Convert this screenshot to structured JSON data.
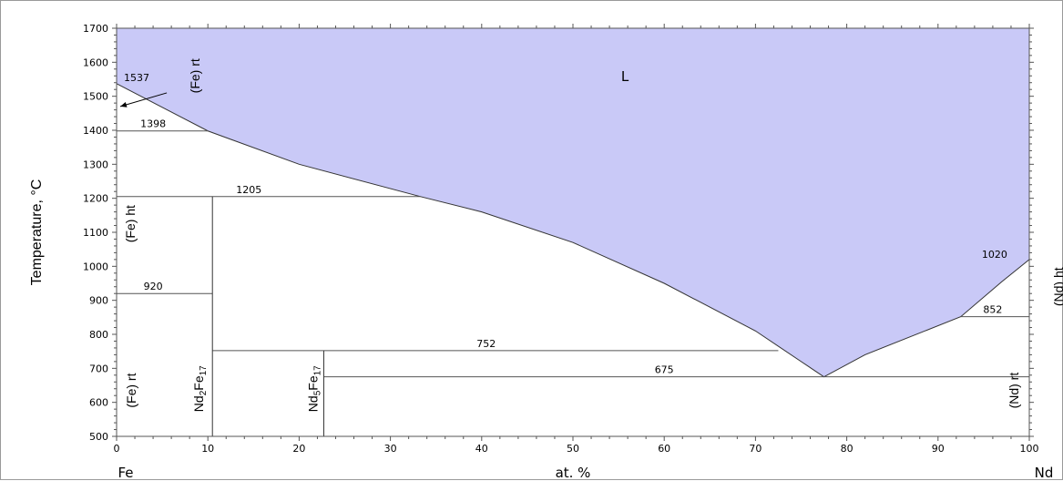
{
  "chart_data": {
    "type": "line",
    "title": "",
    "xlabel": "at. %",
    "ylabel": "Temperature, °C",
    "xlim": [
      0,
      100
    ],
    "ylim": [
      500,
      1700
    ],
    "x_ticks": [
      0,
      10,
      20,
      30,
      40,
      50,
      60,
      70,
      80,
      90,
      100
    ],
    "y_ticks": [
      500,
      600,
      700,
      800,
      900,
      1000,
      1100,
      1200,
      1300,
      1400,
      1500,
      1600,
      1700
    ],
    "x_left_element": "Fe",
    "x_right_element": "Nd",
    "liquid_region_color": "#c9c9f7",
    "liquidus": [
      {
        "x": 0,
        "y": 1537
      },
      {
        "x": 10,
        "y": 1398
      },
      {
        "x": 20,
        "y": 1300
      },
      {
        "x": 33.3,
        "y": 1205
      },
      {
        "x": 40,
        "y": 1160
      },
      {
        "x": 50,
        "y": 1070
      },
      {
        "x": 60,
        "y": 950
      },
      {
        "x": 70,
        "y": 810
      },
      {
        "x": 75,
        "y": 720
      },
      {
        "x": 77.5,
        "y": 675
      },
      {
        "x": 82,
        "y": 740
      },
      {
        "x": 92.5,
        "y": 852
      },
      {
        "x": 97,
        "y": 955
      },
      {
        "x": 100,
        "y": 1020
      }
    ],
    "isotherms": [
      {
        "x1": 0,
        "x2": 10,
        "y": 1398,
        "label": "1398",
        "label_x": 4
      },
      {
        "x1": 0,
        "x2": 33.3,
        "y": 1205,
        "label": "1205",
        "label_x": 14.5
      },
      {
        "x1": 0,
        "x2": 10.5,
        "y": 920,
        "label": "920",
        "label_x": 4
      },
      {
        "x1": 10.5,
        "x2": 72.5,
        "y": 752,
        "label": "752",
        "label_x": 40.5
      },
      {
        "x1": 22.7,
        "x2": 100,
        "y": 675,
        "label": "675",
        "label_x": 60
      },
      {
        "x1": 92.5,
        "x2": 100,
        "y": 852,
        "label": "852",
        "label_x": 96
      }
    ],
    "compound_lines": [
      {
        "x": 10.5,
        "y_bottom": 500,
        "y_top": 1205
      },
      {
        "x": 22.7,
        "y_bottom": 500,
        "y_top": 752
      }
    ],
    "point_labels": [
      {
        "text": "1537",
        "x": 2.2,
        "y": 1545
      },
      {
        "text": "1020",
        "x": 96.2,
        "y": 1025
      }
    ],
    "region_labels": [
      {
        "text": "L",
        "x": 55.7,
        "y": 1545,
        "rotated": false
      },
      {
        "text": "(Fe) rt",
        "x": 8.6,
        "y": 1560,
        "rotated": true
      },
      {
        "text": "(Fe) ht",
        "x": 1.5,
        "y": 1125,
        "rotated": true
      },
      {
        "text": "(Fe) rt",
        "x": 1.6,
        "y": 635,
        "rotated": true
      },
      {
        "text": "Nd2Fe17",
        "x": 9.0,
        "y": 640,
        "rotated": true,
        "base": "Nd",
        "sub1": "2",
        "mid": "Fe",
        "sub2": "17"
      },
      {
        "text": "Nd5Fe17",
        "x": 21.5,
        "y": 640,
        "rotated": true,
        "base": "Nd",
        "sub1": "5",
        "mid": "Fe",
        "sub2": "17"
      },
      {
        "text": "(Nd) rt",
        "x": 98.3,
        "y": 635,
        "rotated": true
      },
      {
        "text": "(Nd) ht",
        "x": 103.2,
        "y": 940,
        "rotated": true
      }
    ],
    "arrow": {
      "from_x": 5.5,
      "from_y": 1510,
      "to_x": 0.4,
      "to_y": 1470
    }
  }
}
